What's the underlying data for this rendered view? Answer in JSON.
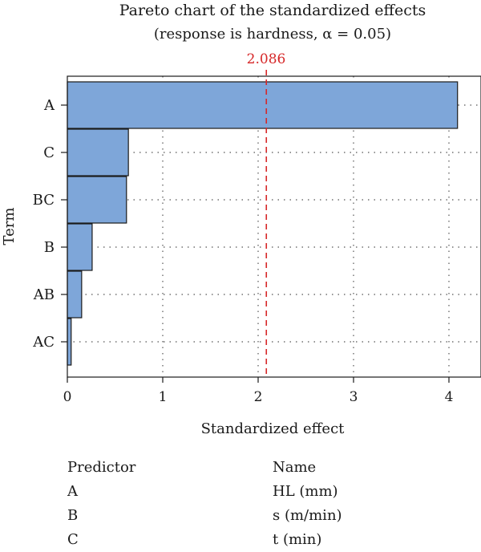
{
  "chart_data": {
    "type": "bar",
    "orientation": "horizontal",
    "title": "Pareto chart of the standardized effects",
    "subtitle": "(response is hardness, α = 0.05)",
    "xlabel": "Standardized effect",
    "ylabel": "Term",
    "xlim": [
      0,
      4.3
    ],
    "xticks": [
      0,
      1,
      2,
      3,
      4
    ],
    "grid": true,
    "categories": [
      "A",
      "C",
      "BC",
      "B",
      "AB",
      "AC"
    ],
    "values": [
      4.09,
      0.64,
      0.62,
      0.26,
      0.15,
      0.04
    ],
    "reference_line": {
      "value": 2.086,
      "label": "2.086",
      "color": "#d62728"
    },
    "bar_color": "#7ea6d9",
    "bar_edge_color": "#1a1a1a"
  },
  "legend_table": {
    "headers": {
      "predictor": "Predictor",
      "name": "Name"
    },
    "rows": [
      {
        "predictor": "A",
        "name": "HL (mm)"
      },
      {
        "predictor": "B",
        "name": "s (m/min)"
      },
      {
        "predictor": "C",
        "name": "t (min)"
      }
    ]
  }
}
